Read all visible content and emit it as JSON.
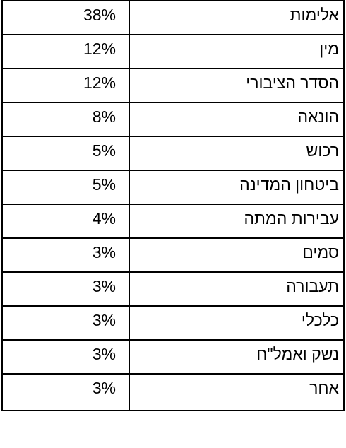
{
  "rows": [
    {
      "label": "אלימות",
      "value": "38%"
    },
    {
      "label": "מין",
      "value": "12%"
    },
    {
      "label": "הסדר הציבורי",
      "value": "12%"
    },
    {
      "label": "הונאה",
      "value": "8%"
    },
    {
      "label": "רכוש",
      "value": "5%"
    },
    {
      "label": "ביטחון המדינה",
      "value": "5%"
    },
    {
      "label": "עבירות המתה",
      "value": "4%"
    },
    {
      "label": "סמים",
      "value": "3%"
    },
    {
      "label": "תעבורה",
      "value": "3%"
    },
    {
      "label": "כלכלי",
      "value": "3%"
    },
    {
      "label": "נשק ואמל\"ח",
      "value": "3%"
    },
    {
      "label": "אחר",
      "value": "3%"
    }
  ]
}
